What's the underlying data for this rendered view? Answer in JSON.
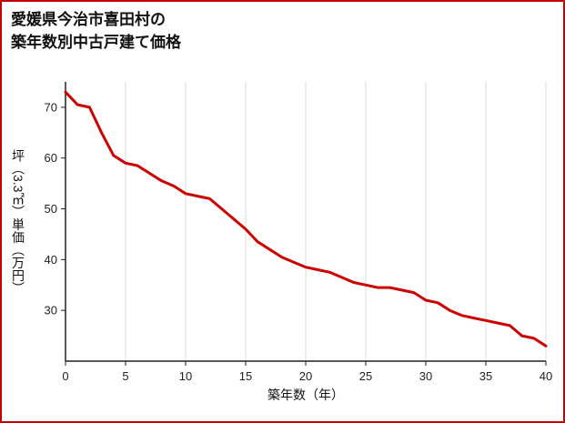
{
  "page": {
    "border_color": "#c40000",
    "background": "#ffffff"
  },
  "title": {
    "line1": "愛媛県今治市喜田村の",
    "line2": "築年数別中古戸建て価格"
  },
  "chart_data": {
    "type": "line",
    "title": "愛媛県今治市喜田村の築年数別中古戸建て価格",
    "xlabel": "築年数（年）",
    "ylabel": "坪（3.3㎡）単価（万円）",
    "x": [
      0,
      1,
      2,
      3,
      4,
      5,
      6,
      7,
      8,
      9,
      10,
      11,
      12,
      13,
      14,
      15,
      16,
      17,
      18,
      19,
      20,
      21,
      22,
      23,
      24,
      25,
      26,
      27,
      28,
      29,
      30,
      31,
      32,
      33,
      34,
      35,
      36,
      37,
      38,
      39,
      40
    ],
    "values": [
      73,
      70.5,
      70,
      65,
      60.5,
      59,
      58.5,
      57,
      55.5,
      54.5,
      53,
      52.5,
      52,
      50,
      48,
      46,
      43.5,
      42,
      40.5,
      39.5,
      38.5,
      38,
      37.5,
      36.5,
      35.5,
      35,
      34.5,
      34.5,
      34,
      33.5,
      32,
      31.5,
      30,
      29,
      28.5,
      28,
      27.5,
      27,
      25,
      24.5,
      23
    ],
    "xlim": [
      0,
      40
    ],
    "ylim": [
      20,
      75
    ],
    "xticks": [
      0,
      5,
      10,
      15,
      20,
      25,
      30,
      35,
      40
    ],
    "yticks": [
      30,
      40,
      50,
      60,
      70
    ],
    "grid": "vertical",
    "grid_color": "#dcdcdc",
    "axis_color": "#222222",
    "line_color": "#cc0000",
    "line_width": 3,
    "legend": "none"
  }
}
